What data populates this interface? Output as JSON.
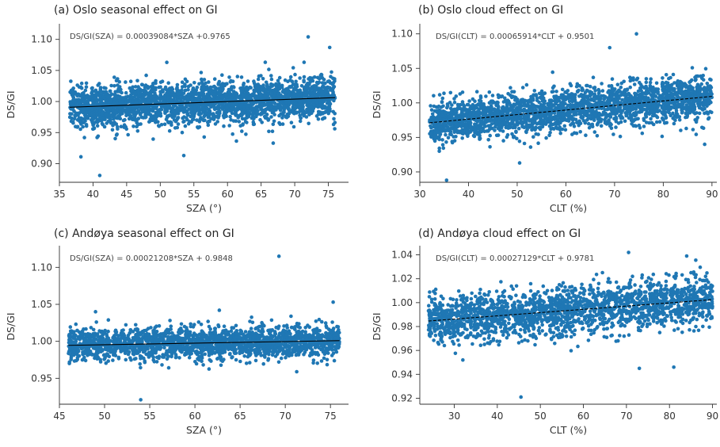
{
  "figure_title": "",
  "chart_data": [
    {
      "id": "a",
      "type": "scatter",
      "title": "(a) Oslo seasonal effect on GI",
      "xlabel": "SZA (°)",
      "ylabel": "DS/GI",
      "xlim": [
        35,
        78
      ],
      "ylim": [
        0.87,
        1.12
      ],
      "xticks": [
        35,
        40,
        45,
        50,
        55,
        60,
        65,
        70,
        75
      ],
      "xtick_labels": [
        "35",
        "40",
        "45",
        "50",
        "55",
        "60",
        "65",
        "70",
        "75"
      ],
      "yticks": [
        0.9,
        0.95,
        1.0,
        1.05,
        1.1
      ],
      "ytick_labels": [
        "0.90",
        "0.95",
        "1.00",
        "1.05",
        "1.10"
      ],
      "annotation": "DS/GI(SZA) = 0.00039084*SZA +0.9765",
      "fit": {
        "slope": 0.00039084,
        "intercept": 0.9765,
        "x_range": [
          36.5,
          76
        ],
        "style": "solid"
      },
      "points_summary": {
        "x_range": [
          36.5,
          76
        ],
        "center_offset": 0.0,
        "spread": 0.017,
        "n": 2600,
        "seed": 11
      },
      "outliers": [
        [
          72,
          1.104
        ],
        [
          75.2,
          1.087
        ],
        [
          41,
          0.881
        ],
        [
          53.5,
          0.913
        ],
        [
          38.2,
          0.911
        ],
        [
          66.8,
          0.933
        ]
      ],
      "grid": false,
      "legend": "none"
    },
    {
      "id": "b",
      "type": "scatter",
      "title": "(b) Oslo cloud effect on GI",
      "xlabel": "CLT (%)",
      "ylabel": "DS/GI",
      "xlim": [
        30,
        91
      ],
      "ylim": [
        0.885,
        1.11
      ],
      "xticks": [
        30,
        40,
        50,
        60,
        70,
        80,
        90
      ],
      "xtick_labels": [
        "30",
        "40",
        "50",
        "60",
        "70",
        "80",
        "90"
      ],
      "yticks": [
        0.9,
        0.95,
        1.0,
        1.05,
        1.1
      ],
      "ytick_labels": [
        "0.90",
        "0.95",
        "1.00",
        "1.05",
        "1.10"
      ],
      "annotation": "DS/GI(CLT) = 0.00065914*CLT + 0.9501",
      "fit": {
        "slope": 0.00065914,
        "intercept": 0.9501,
        "x_range": [
          32,
          90
        ],
        "style": "dashed"
      },
      "points_summary": {
        "x_range": [
          32,
          90
        ],
        "center_offset": 0.0,
        "spread": 0.015,
        "n": 2400,
        "seed": 23
      },
      "outliers": [
        [
          74.5,
          1.1
        ],
        [
          69,
          1.08
        ],
        [
          35.5,
          0.888
        ],
        [
          50.5,
          0.913
        ],
        [
          34,
          0.93
        ],
        [
          88.5,
          0.94
        ]
      ],
      "grid": false,
      "legend": "none"
    },
    {
      "id": "c",
      "type": "scatter",
      "title": "(c) Andøya seasonal effect on GI",
      "xlabel": "SZA (°)",
      "ylabel": "DS/GI",
      "xlim": [
        45,
        77
      ],
      "ylim": [
        0.915,
        1.125
      ],
      "xticks": [
        45,
        50,
        55,
        60,
        65,
        70,
        75
      ],
      "xtick_labels": [
        "45",
        "50",
        "55",
        "60",
        "65",
        "70",
        "75"
      ],
      "yticks": [
        0.95,
        1.0,
        1.05,
        1.1
      ],
      "ytick_labels": [
        "0.95",
        "1.00",
        "1.05",
        "1.10"
      ],
      "annotation": "DS/GI(SZA) = 0.00021208*SZA + 0.9848",
      "fit": {
        "slope": 0.00021208,
        "intercept": 0.9848,
        "x_range": [
          46,
          76
        ],
        "style": "solid"
      },
      "points_summary": {
        "x_range": [
          46,
          76
        ],
        "center_offset": 0.0,
        "spread": 0.011,
        "n": 2000,
        "seed": 37
      },
      "outliers": [
        [
          69.3,
          1.115
        ],
        [
          54,
          0.921
        ],
        [
          75.3,
          1.053
        ],
        [
          62.7,
          1.042
        ],
        [
          49,
          1.04
        ]
      ],
      "grid": false,
      "legend": "none"
    },
    {
      "id": "d",
      "type": "scatter",
      "title": "(d) Andøya cloud effect on GI",
      "xlabel": "CLT (%)",
      "ylabel": "DS/GI",
      "xlim": [
        22,
        91
      ],
      "ylim": [
        0.915,
        1.045
      ],
      "xticks": [
        30,
        40,
        50,
        60,
        70,
        80,
        90
      ],
      "xtick_labels": [
        "30",
        "40",
        "50",
        "60",
        "70",
        "80",
        "90"
      ],
      "yticks": [
        0.92,
        0.94,
        0.96,
        0.98,
        1.0,
        1.02,
        1.04
      ],
      "ytick_labels": [
        "0.92",
        "0.94",
        "0.96",
        "0.98",
        "1.00",
        "1.02",
        "1.04"
      ],
      "annotation": "DS/GI(CLT) = 0.00027129*CLT + 0.9781",
      "fit": {
        "slope": 0.00027129,
        "intercept": 0.9781,
        "x_range": [
          24,
          90
        ],
        "style": "dashed"
      },
      "points_summary": {
        "x_range": [
          24,
          90
        ],
        "center_offset": 0.0,
        "spread": 0.01,
        "n": 2100,
        "seed": 53
      },
      "outliers": [
        [
          45.5,
          0.921
        ],
        [
          73,
          0.945
        ],
        [
          81,
          0.946
        ],
        [
          70.5,
          1.042
        ],
        [
          84,
          1.039
        ],
        [
          32,
          0.952
        ]
      ],
      "grid": false,
      "legend": "none"
    }
  ]
}
